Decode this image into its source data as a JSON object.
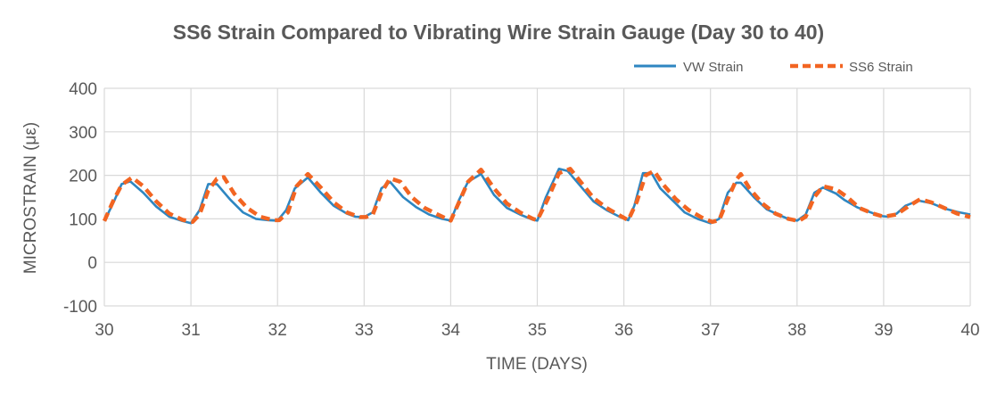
{
  "chart_data": {
    "type": "line",
    "title": "SS6 Strain Compared to Vibrating Wire Strain Gauge (Day 30 to 40)",
    "xlabel": "TIME (DAYS)",
    "ylabel": "MICROSTRAIN (με)",
    "xlim": [
      30,
      40
    ],
    "ylim": [
      -100,
      400
    ],
    "xticks": [
      30,
      31,
      32,
      33,
      34,
      35,
      36,
      37,
      38,
      39,
      40
    ],
    "yticks": [
      -100,
      0,
      100,
      200,
      300,
      400
    ],
    "grid": true,
    "legend_position": "top-right",
    "series": [
      {
        "name": "VW Strain",
        "color": "#2E86C1",
        "style": "solid",
        "points": [
          [
            30.0,
            95
          ],
          [
            30.1,
            135
          ],
          [
            30.2,
            180
          ],
          [
            30.3,
            186
          ],
          [
            30.45,
            160
          ],
          [
            30.6,
            128
          ],
          [
            30.75,
            105
          ],
          [
            30.9,
            95
          ],
          [
            31.0,
            90
          ],
          [
            31.1,
            120
          ],
          [
            31.2,
            180
          ],
          [
            31.3,
            180
          ],
          [
            31.45,
            145
          ],
          [
            31.6,
            115
          ],
          [
            31.75,
            100
          ],
          [
            31.9,
            97
          ],
          [
            32.0,
            96
          ],
          [
            32.1,
            120
          ],
          [
            32.2,
            170
          ],
          [
            32.35,
            195
          ],
          [
            32.5,
            160
          ],
          [
            32.65,
            130
          ],
          [
            32.8,
            112
          ],
          [
            32.9,
            105
          ],
          [
            33.0,
            104
          ],
          [
            33.1,
            115
          ],
          [
            33.2,
            170
          ],
          [
            33.3,
            185
          ],
          [
            33.45,
            150
          ],
          [
            33.6,
            127
          ],
          [
            33.75,
            110
          ],
          [
            33.9,
            100
          ],
          [
            34.0,
            96
          ],
          [
            34.1,
            145
          ],
          [
            34.2,
            185
          ],
          [
            34.35,
            203
          ],
          [
            34.5,
            155
          ],
          [
            34.65,
            125
          ],
          [
            34.8,
            110
          ],
          [
            34.95,
            98
          ],
          [
            35.0,
            96
          ],
          [
            35.1,
            150
          ],
          [
            35.25,
            215
          ],
          [
            35.35,
            210
          ],
          [
            35.5,
            175
          ],
          [
            35.65,
            140
          ],
          [
            35.8,
            120
          ],
          [
            35.95,
            105
          ],
          [
            36.05,
            97
          ],
          [
            36.12,
            130
          ],
          [
            36.22,
            205
          ],
          [
            36.32,
            205
          ],
          [
            36.42,
            170
          ],
          [
            36.6,
            135
          ],
          [
            36.7,
            115
          ],
          [
            36.85,
            100
          ],
          [
            37.0,
            90
          ],
          [
            37.1,
            100
          ],
          [
            37.2,
            160
          ],
          [
            37.3,
            183
          ],
          [
            37.35,
            183
          ],
          [
            37.5,
            150
          ],
          [
            37.65,
            122
          ],
          [
            37.8,
            108
          ],
          [
            37.9,
            100
          ],
          [
            38.0,
            96
          ],
          [
            38.1,
            110
          ],
          [
            38.2,
            160
          ],
          [
            38.3,
            172
          ],
          [
            38.45,
            158
          ],
          [
            38.55,
            143
          ],
          [
            38.7,
            126
          ],
          [
            38.85,
            115
          ],
          [
            38.95,
            107
          ],
          [
            39.05,
            105
          ],
          [
            39.15,
            112
          ],
          [
            39.25,
            130
          ],
          [
            39.4,
            142
          ],
          [
            39.55,
            136
          ],
          [
            39.7,
            124
          ],
          [
            39.85,
            116
          ],
          [
            40.0,
            110
          ]
        ]
      },
      {
        "name": "SS6 Strain",
        "color": "#F26522",
        "style": "dashed",
        "points": [
          [
            30.0,
            95
          ],
          [
            30.1,
            140
          ],
          [
            30.2,
            178
          ],
          [
            30.32,
            195
          ],
          [
            30.45,
            175
          ],
          [
            30.6,
            140
          ],
          [
            30.75,
            112
          ],
          [
            30.9,
            98
          ],
          [
            31.02,
            93
          ],
          [
            31.1,
            110
          ],
          [
            31.2,
            165
          ],
          [
            31.3,
            192
          ],
          [
            31.38,
            196
          ],
          [
            31.5,
            158
          ],
          [
            31.65,
            125
          ],
          [
            31.8,
            105
          ],
          [
            31.95,
            97
          ],
          [
            32.02,
            97
          ],
          [
            32.12,
            115
          ],
          [
            32.22,
            175
          ],
          [
            32.35,
            203
          ],
          [
            32.5,
            172
          ],
          [
            32.65,
            138
          ],
          [
            32.8,
            115
          ],
          [
            32.95,
            104
          ],
          [
            33.02,
            104
          ],
          [
            33.1,
            110
          ],
          [
            33.2,
            160
          ],
          [
            33.3,
            193
          ],
          [
            33.42,
            185
          ],
          [
            33.55,
            150
          ],
          [
            33.7,
            125
          ],
          [
            33.85,
            110
          ],
          [
            34.0,
            96
          ],
          [
            34.1,
            140
          ],
          [
            34.2,
            185
          ],
          [
            34.35,
            213
          ],
          [
            34.5,
            170
          ],
          [
            34.65,
            135
          ],
          [
            34.8,
            115
          ],
          [
            34.95,
            100
          ],
          [
            35.0,
            97
          ],
          [
            35.12,
            145
          ],
          [
            35.25,
            205
          ],
          [
            35.38,
            215
          ],
          [
            35.5,
            185
          ],
          [
            35.65,
            148
          ],
          [
            35.8,
            125
          ],
          [
            35.95,
            108
          ],
          [
            36.05,
            97
          ],
          [
            36.15,
            140
          ],
          [
            36.25,
            200
          ],
          [
            36.35,
            210
          ],
          [
            36.45,
            180
          ],
          [
            36.6,
            145
          ],
          [
            36.75,
            120
          ],
          [
            36.9,
            103
          ],
          [
            37.02,
            93
          ],
          [
            37.1,
            97
          ],
          [
            37.22,
            155
          ],
          [
            37.3,
            190
          ],
          [
            37.35,
            203
          ],
          [
            37.45,
            170
          ],
          [
            37.6,
            135
          ],
          [
            37.75,
            112
          ],
          [
            37.9,
            100
          ],
          [
            38.02,
            95
          ],
          [
            38.1,
            105
          ],
          [
            38.2,
            150
          ],
          [
            38.3,
            175
          ],
          [
            38.45,
            168
          ],
          [
            38.58,
            150
          ],
          [
            38.72,
            125
          ],
          [
            38.88,
            112
          ],
          [
            39.0,
            105
          ],
          [
            39.15,
            110
          ],
          [
            39.28,
            128
          ],
          [
            39.42,
            145
          ],
          [
            39.55,
            138
          ],
          [
            39.7,
            125
          ],
          [
            39.85,
            112
          ],
          [
            40.0,
            104
          ]
        ]
      }
    ]
  }
}
